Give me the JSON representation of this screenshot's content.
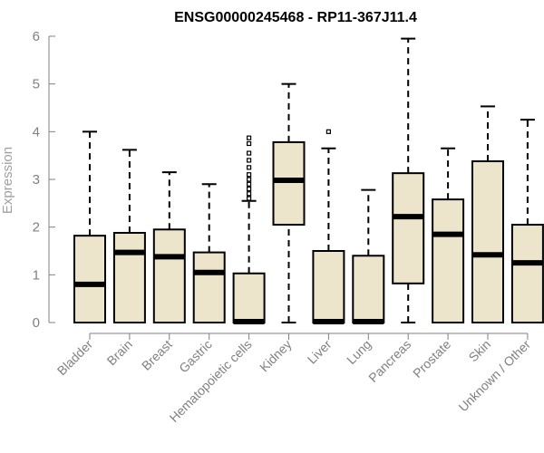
{
  "chart_data": {
    "type": "box",
    "title": "ENSG00000245468 - RP11-367J11.4",
    "ylabel": "Expression",
    "xlabel": "",
    "ylim": [
      0,
      6
    ],
    "yticks": [
      0,
      1,
      2,
      3,
      4,
      5,
      6
    ],
    "categories": [
      "Bladder",
      "Brain",
      "Breast",
      "Gastric",
      "Hematopoietic cells",
      "Kidney",
      "Liver",
      "Lung",
      "Pancreas",
      "Prostate",
      "Skin",
      "Unknown / Other"
    ],
    "boxes": [
      {
        "category": "Bladder",
        "min": 0,
        "q1": 0,
        "median": 0.8,
        "q3": 1.82,
        "max": 4.0,
        "outliers": []
      },
      {
        "category": "Brain",
        "min": 0,
        "q1": 0,
        "median": 1.47,
        "q3": 1.88,
        "max": 3.62,
        "outliers": []
      },
      {
        "category": "Breast",
        "min": 0,
        "q1": 0,
        "median": 1.38,
        "q3": 1.95,
        "max": 3.15,
        "outliers": []
      },
      {
        "category": "Gastric",
        "min": 0,
        "q1": 0,
        "median": 1.05,
        "q3": 1.47,
        "max": 2.9,
        "outliers": []
      },
      {
        "category": "Hematopoietic cells",
        "min": 0,
        "q1": 0,
        "median": 0.02,
        "q3": 1.03,
        "max": 2.55,
        "outliers": [
          2.6,
          2.7,
          2.8,
          2.9,
          3.0,
          3.1,
          3.25,
          3.4,
          3.55,
          3.75,
          3.87
        ]
      },
      {
        "category": "Kidney",
        "min": 0,
        "q1": 2.05,
        "median": 2.98,
        "q3": 3.78,
        "max": 5.0,
        "outliers": []
      },
      {
        "category": "Liver",
        "min": 0,
        "q1": 0,
        "median": 0.02,
        "q3": 1.5,
        "max": 3.65,
        "outliers": [
          4.0
        ]
      },
      {
        "category": "Lung",
        "min": 0,
        "q1": 0,
        "median": 0.02,
        "q3": 1.4,
        "max": 2.78,
        "outliers": []
      },
      {
        "category": "Pancreas",
        "min": 0,
        "q1": 0.82,
        "median": 2.22,
        "q3": 3.13,
        "max": 5.95,
        "outliers": []
      },
      {
        "category": "Prostate",
        "min": 0,
        "q1": 0,
        "median": 1.85,
        "q3": 2.58,
        "max": 3.65,
        "outliers": []
      },
      {
        "category": "Skin",
        "min": 0,
        "q1": 0,
        "median": 1.42,
        "q3": 3.38,
        "max": 4.53,
        "outliers": []
      },
      {
        "category": "Unknown / Other",
        "min": 0,
        "q1": 0,
        "median": 1.25,
        "q3": 2.05,
        "max": 4.25,
        "outliers": []
      }
    ],
    "colors": {
      "box_fill": "#ede5cb",
      "box_stroke": "#000000",
      "axis": "#808080",
      "title": "#000000"
    },
    "grid": false,
    "legend": "none"
  }
}
